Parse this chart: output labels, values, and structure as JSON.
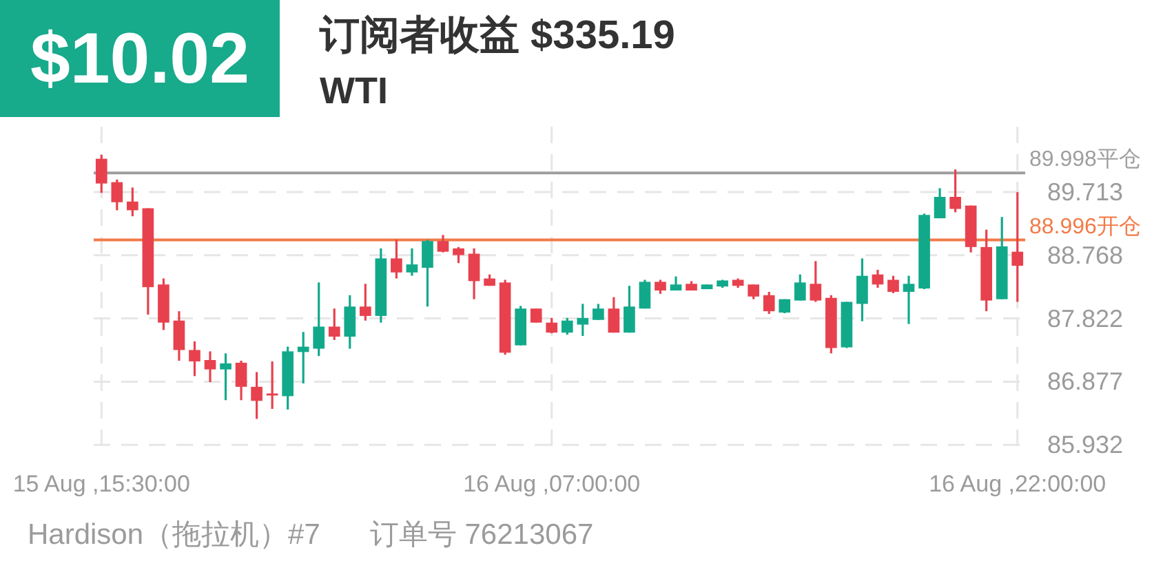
{
  "chart_data": {
    "type": "candlestick",
    "title": "订阅者收益 $335.19",
    "subtitle": "WTI",
    "annotations": [
      "$10.02",
      "Hardison（拖拉机）#7",
      "订单号 76213067"
    ],
    "categories": [
      "15 Aug ,15:30:00",
      null,
      null,
      null,
      null,
      null,
      null,
      null,
      null,
      null,
      null,
      null,
      null,
      null,
      null,
      null,
      null,
      null,
      null,
      null,
      null,
      null,
      null,
      null,
      null,
      null,
      null,
      null,
      null,
      "16 Aug ,07:00:00",
      null,
      null,
      null,
      null,
      null,
      null,
      null,
      null,
      null,
      null,
      null,
      null,
      null,
      null,
      null,
      null,
      null,
      null,
      null,
      null,
      null,
      null,
      null,
      null,
      null,
      null,
      null,
      null,
      null,
      "16 Aug ,22:00:00"
    ],
    "ohlc": [
      [
        90.21,
        90.27,
        89.7,
        89.84
      ],
      [
        89.86,
        89.9,
        89.44,
        89.56
      ],
      [
        89.57,
        89.78,
        89.35,
        89.44
      ],
      [
        89.47,
        89.47,
        87.88,
        88.29
      ],
      [
        88.33,
        88.42,
        87.65,
        87.76
      ],
      [
        87.79,
        87.93,
        87.19,
        87.35
      ],
      [
        87.35,
        87.48,
        86.96,
        87.18
      ],
      [
        87.2,
        87.33,
        86.87,
        87.06
      ],
      [
        87.06,
        87.3,
        86.6,
        87.15
      ],
      [
        87.16,
        87.19,
        86.6,
        86.8
      ],
      [
        86.8,
        87.02,
        86.32,
        86.59
      ],
      [
        86.7,
        87.18,
        86.47,
        86.67
      ],
      [
        86.66,
        87.4,
        86.46,
        87.33
      ],
      [
        87.32,
        87.62,
        86.85,
        87.4
      ],
      [
        87.37,
        88.36,
        87.26,
        87.7
      ],
      [
        87.7,
        87.97,
        87.5,
        87.55
      ],
      [
        87.55,
        88.17,
        87.37,
        88.0
      ],
      [
        88.0,
        88.34,
        87.79,
        87.86
      ],
      [
        87.86,
        88.87,
        87.76,
        88.72
      ],
      [
        88.72,
        89.0,
        88.42,
        88.51
      ],
      [
        88.51,
        88.87,
        88.46,
        88.63
      ],
      [
        88.58,
        89.0,
        88.0,
        88.98
      ],
      [
        88.98,
        89.07,
        88.81,
        88.82
      ],
      [
        88.87,
        88.89,
        88.65,
        88.77
      ],
      [
        88.79,
        88.87,
        88.11,
        88.38
      ],
      [
        88.42,
        88.48,
        88.31,
        88.31
      ],
      [
        88.36,
        88.4,
        87.28,
        87.31
      ],
      [
        87.42,
        88.01,
        87.42,
        87.97
      ],
      [
        87.97,
        87.97,
        87.76,
        87.76
      ],
      [
        87.76,
        87.83,
        87.6,
        87.61
      ],
      [
        87.61,
        87.83,
        87.58,
        87.79
      ],
      [
        87.73,
        88.04,
        87.56,
        87.83
      ],
      [
        87.8,
        88.04,
        87.8,
        87.97
      ],
      [
        87.97,
        88.14,
        87.61,
        87.61
      ],
      [
        87.61,
        88.31,
        87.61,
        88.0
      ],
      [
        87.97,
        88.4,
        87.97,
        88.37
      ],
      [
        88.37,
        88.4,
        88.19,
        88.24
      ],
      [
        88.24,
        88.45,
        88.24,
        88.33
      ],
      [
        88.34,
        88.38,
        88.24,
        88.24
      ],
      [
        88.26,
        88.33,
        88.26,
        88.33
      ],
      [
        88.3,
        88.4,
        88.28,
        88.39
      ],
      [
        88.4,
        88.42,
        88.28,
        88.31
      ],
      [
        88.33,
        88.33,
        88.11,
        88.15
      ],
      [
        88.17,
        88.22,
        87.89,
        87.93
      ],
      [
        87.91,
        88.11,
        87.9,
        88.11
      ],
      [
        88.09,
        88.48,
        88.09,
        88.36
      ],
      [
        88.34,
        88.68,
        88.07,
        88.09
      ],
      [
        88.13,
        88.17,
        87.3,
        87.38
      ],
      [
        87.39,
        88.07,
        87.38,
        88.07
      ],
      [
        88.04,
        88.72,
        87.78,
        88.46
      ],
      [
        88.48,
        88.55,
        88.28,
        88.33
      ],
      [
        88.4,
        88.46,
        88.2,
        88.22
      ],
      [
        88.22,
        88.46,
        87.74,
        88.34
      ],
      [
        88.27,
        89.39,
        88.26,
        89.37
      ],
      [
        89.32,
        89.77,
        89.32,
        89.64
      ],
      [
        89.64,
        90.05,
        89.41,
        89.46
      ],
      [
        89.51,
        89.51,
        88.81,
        88.89
      ],
      [
        88.89,
        89.15,
        87.93,
        88.09
      ],
      [
        88.11,
        89.34,
        88.11,
        88.9
      ],
      [
        88.82,
        89.71,
        88.07,
        88.61
      ]
    ],
    "colors": [
      "#e8414e",
      "#e8414e",
      "#e8414e",
      "#e8414e",
      "#e8414e",
      "#e8414e",
      "#e8414e",
      "#e8414e",
      "#12a98b",
      "#e8414e",
      "#e8414e",
      "#e8414e",
      "#12a98b",
      "#12a98b",
      "#12a98b",
      "#e8414e",
      "#12a98b",
      "#e8414e",
      "#12a98b",
      "#e8414e",
      "#12a98b",
      "#12a98b",
      "#e8414e",
      "#e8414e",
      "#e8414e",
      "#e8414e",
      "#e8414e",
      "#12a98b",
      "#e8414e",
      "#e8414e",
      "#12a98b",
      "#12a98b",
      "#12a98b",
      "#e8414e",
      "#12a98b",
      "#12a98b",
      "#e8414e",
      "#12a98b",
      "#e8414e",
      "#12a98b",
      "#12a98b",
      "#e8414e",
      "#e8414e",
      "#e8414e",
      "#12a98b",
      "#12a98b",
      "#e8414e",
      "#e8414e",
      "#12a98b",
      "#12a98b",
      "#e8414e",
      "#e8414e",
      "#12a98b",
      "#12a98b",
      "#12a98b",
      "#e8414e",
      "#e8414e",
      "#e8414e",
      "#12a98b",
      "#e8414e"
    ],
    "ylim": [
      85.79,
      90.69
    ],
    "yticks": [
      85.932,
      86.877,
      87.822,
      88.768,
      89.713
    ],
    "grid": true,
    "ref_lines": [
      {
        "axis": "y",
        "value": 89.998,
        "label": "89.998平仓",
        "color": "#9e9e9e"
      },
      {
        "axis": "y",
        "value": 88.996,
        "label": "88.996开仓",
        "color": "#f27a47"
      }
    ]
  }
}
